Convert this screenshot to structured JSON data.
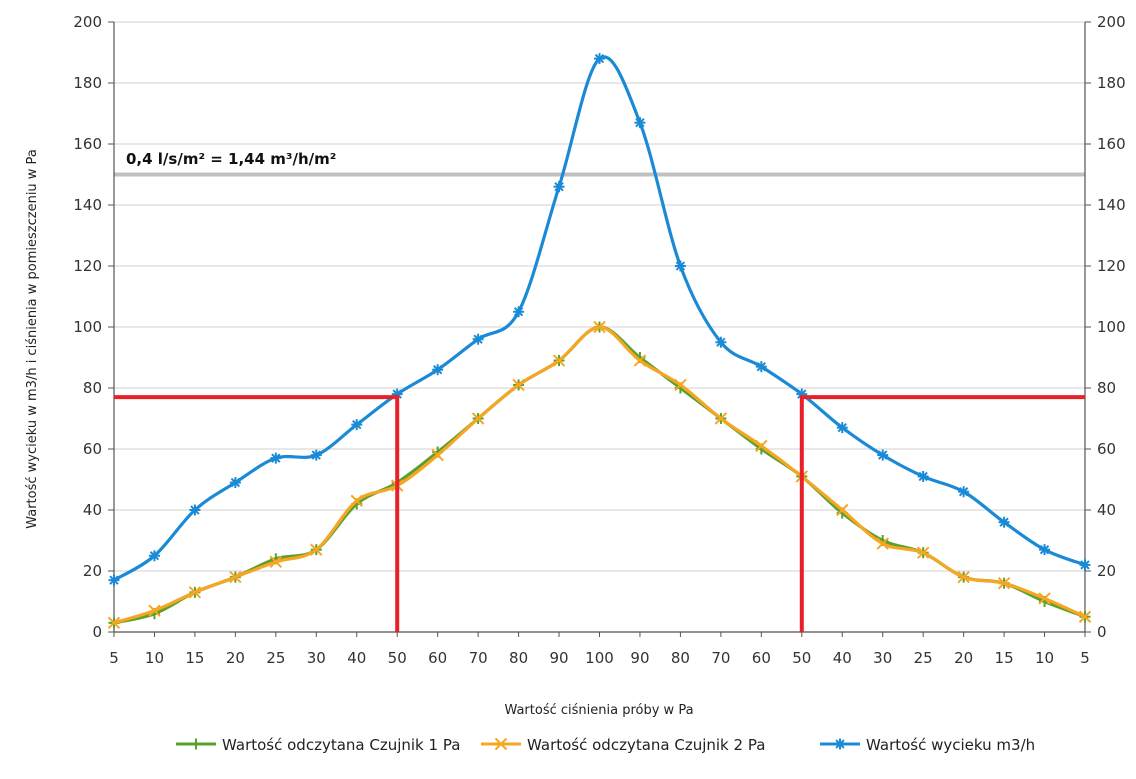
{
  "chart_data": {
    "type": "line",
    "title": "",
    "xlabel": "Wartość ciśnienia próby w Pa",
    "ylabel": "Wartość wycieku w m3/h i ciśnienia w pomieszczeniu w Pa",
    "ylim": [
      0,
      200
    ],
    "y_ticks": [
      "0",
      "20",
      "40",
      "60",
      "80",
      "100",
      "120",
      "140",
      "160",
      "180",
      "200"
    ],
    "categories": [
      "5",
      "10",
      "15",
      "20",
      "25",
      "30",
      "40",
      "50",
      "60",
      "70",
      "80",
      "90",
      "100",
      "90",
      "80",
      "70",
      "60",
      "50",
      "40",
      "30",
      "25",
      "20",
      "15",
      "10",
      "5"
    ],
    "grid": true,
    "legend_position": "bottom",
    "series": [
      {
        "name": "Wartość odczytana Czujnik 1 Pa",
        "color": "#5aa02c",
        "marker": "plus",
        "values": [
          3,
          6,
          13,
          18,
          24,
          27,
          42,
          49,
          59,
          70,
          81,
          89,
          100,
          90,
          80,
          70,
          60,
          51,
          39,
          30,
          26,
          18,
          16,
          10,
          5
        ]
      },
      {
        "name": "Wartość odczytana Czujnik 2 Pa",
        "color": "#f5a623",
        "marker": "x",
        "values": [
          3,
          7,
          13,
          18,
          23,
          27,
          43,
          48,
          58,
          70,
          81,
          89,
          100,
          89,
          81,
          70,
          61,
          51,
          40,
          29,
          26,
          18,
          16,
          11,
          5
        ]
      },
      {
        "name": "Wartość wycieku m3/h",
        "color": "#1b8ad6",
        "marker": "star",
        "values": [
          17,
          25,
          40,
          49,
          57,
          58,
          68,
          78,
          86,
          96,
          105,
          146,
          188,
          167,
          120,
          95,
          87,
          78,
          67,
          58,
          51,
          46,
          36,
          27,
          22
        ]
      }
    ],
    "reference_line": {
      "value": 150,
      "color": "#c0c0c0",
      "label": "0,4 l/s/m² = 1,44 m³/h/m²"
    },
    "threshold_lines": {
      "color": "#e8202a",
      "y_value": 77,
      "left_index": 7,
      "right_index": 17
    }
  }
}
